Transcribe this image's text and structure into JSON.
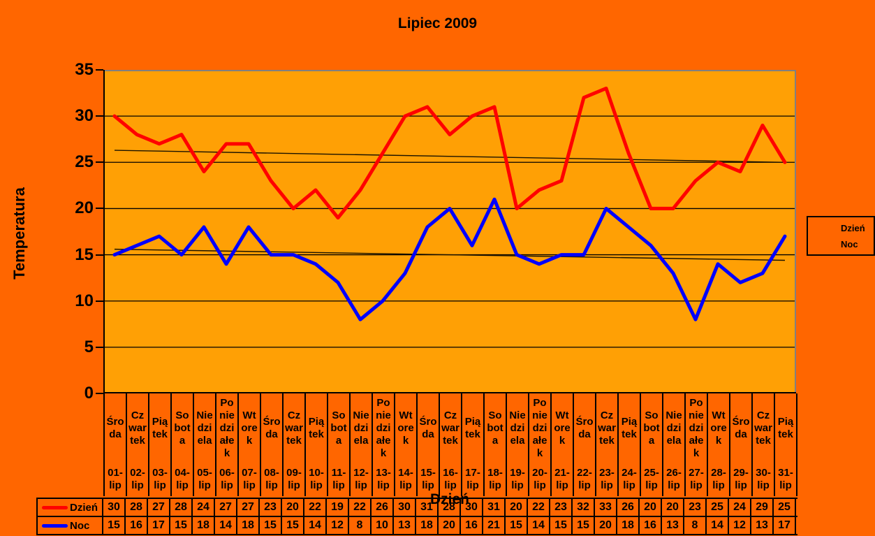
{
  "title": "Lipiec 2009",
  "colors": {
    "background": "#FF6600",
    "plot_background": "#FFA005",
    "grid": "#000000",
    "plot_border": "#808080",
    "trendline": "#1A1300",
    "day_series": "#FF0000",
    "night_series": "#0000FF"
  },
  "y_axis": {
    "title": "Temperatura"
  },
  "x_axis": {
    "title": "Dzień",
    "day_name_wraps": {
      "Środa": "Śro\nda",
      "Czwartek": "Cz\nwar\ntek",
      "Piątek": "Pią\ntek",
      "Sobota": "So\nbot\na",
      "Niedziela": "Nie\ndzi\nela",
      "Poniedziałek": "Po\nnie\ndzi\nałe\nk",
      "Wtorek": "Wt\nore\nk"
    }
  },
  "legend": {
    "items": [
      {
        "label": "Dzień",
        "color": "#FF0000"
      },
      {
        "label": "Noc",
        "color": "#0000FF"
      }
    ]
  },
  "chart_data": {
    "type": "line",
    "title": "Lipiec 2009",
    "xlabel": "Dzień",
    "ylabel": "Temperatura",
    "ylim": [
      0,
      35
    ],
    "y_tick_step": 5,
    "grid": true,
    "legend_position": "right",
    "categories": [
      "01-lip",
      "02-lip",
      "03-lip",
      "04-lip",
      "05-lip",
      "06-lip",
      "07-lip",
      "08-lip",
      "09-lip",
      "10-lip",
      "11-lip",
      "12-lip",
      "13-lip",
      "14-lip",
      "15-lip",
      "16-lip",
      "17-lip",
      "18-lip",
      "19-lip",
      "20-lip",
      "21-lip",
      "22-lip",
      "23-lip",
      "24-lip",
      "25-lip",
      "26-lip",
      "27-lip",
      "28-lip",
      "29-lip",
      "30-lip",
      "31-lip"
    ],
    "day_names": [
      "Środa",
      "Czwartek",
      "Piątek",
      "Sobota",
      "Niedziela",
      "Poniedziałek",
      "Wtorek",
      "Środa",
      "Czwartek",
      "Piątek",
      "Sobota",
      "Niedziela",
      "Poniedziałek",
      "Wtorek",
      "Środa",
      "Czwartek",
      "Piątek",
      "Sobota",
      "Niedziela",
      "Poniedziałek",
      "Wtorek",
      "Środa",
      "Czwartek",
      "Piątek",
      "Sobota",
      "Niedziela",
      "Poniedziałek",
      "Wtorek",
      "Środa",
      "Czwartek",
      "Piątek"
    ],
    "series": [
      {
        "name": "Dzień",
        "color": "#FF0000",
        "values": [
          30,
          28,
          27,
          28,
          24,
          27,
          27,
          23,
          20,
          22,
          19,
          22,
          26,
          30,
          31,
          28,
          30,
          31,
          20,
          22,
          23,
          32,
          33,
          26,
          20,
          20,
          23,
          25,
          24,
          29,
          25
        ]
      },
      {
        "name": "Noc",
        "color": "#0000FF",
        "values": [
          15,
          16,
          17,
          15,
          18,
          14,
          18,
          15,
          15,
          14,
          12,
          8,
          10,
          13,
          18,
          20,
          16,
          21,
          15,
          14,
          15,
          15,
          20,
          18,
          16,
          13,
          8,
          14,
          12,
          13,
          17
        ]
      }
    ],
    "trendlines": [
      {
        "series": "Dzień",
        "start_value": 26.3,
        "end_value": 25.0
      },
      {
        "series": "Noc",
        "start_value": 15.6,
        "end_value": 14.4
      }
    ]
  },
  "table": {
    "rows": [
      {
        "label": "Dzień",
        "marker_color": "#FF0000",
        "values": [
          30,
          28,
          27,
          28,
          24,
          27,
          27,
          23,
          20,
          22,
          19,
          22,
          26,
          30,
          31,
          28,
          30,
          31,
          20,
          22,
          23,
          32,
          33,
          26,
          20,
          20,
          23,
          25,
          24,
          29,
          25
        ]
      },
      {
        "label": "Noc",
        "marker_color": "#0000FF",
        "values": [
          15,
          16,
          17,
          15,
          18,
          14,
          18,
          15,
          15,
          14,
          12,
          8,
          10,
          13,
          18,
          20,
          16,
          21,
          15,
          14,
          15,
          15,
          20,
          18,
          16,
          13,
          8,
          14,
          12,
          13,
          17
        ]
      }
    ]
  }
}
